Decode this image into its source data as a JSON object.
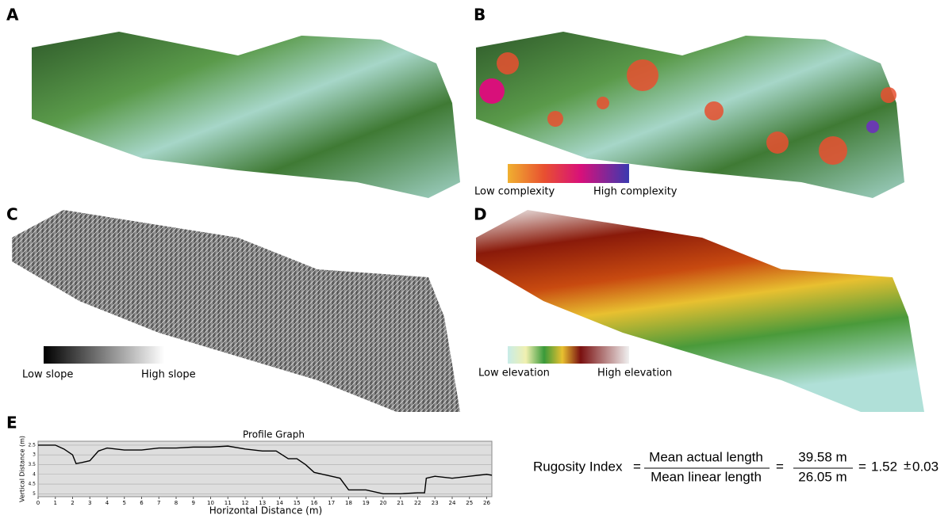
{
  "panels": {
    "a": {
      "letter": "A"
    },
    "b": {
      "letter": "B",
      "legend_low": "Low complexity",
      "legend_high": "High complexity"
    },
    "c": {
      "letter": "C",
      "legend_low": "Low slope",
      "legend_high": "High slope"
    },
    "d": {
      "letter": "D",
      "legend_low": "Low elevation",
      "legend_high": "High elevation"
    },
    "e": {
      "letter": "E"
    }
  },
  "chart_data": {
    "type": "line",
    "title": "Profile Graph",
    "x_label": "Horizontal Distance (m)",
    "y_label": "Vertical Distance (m)",
    "x": [
      0,
      1,
      1.5,
      2,
      2.2,
      2.5,
      3,
      3.5,
      4,
      5,
      6,
      7,
      8,
      9,
      10,
      11,
      12,
      13,
      13.8,
      14.5,
      15,
      15.5,
      16,
      17,
      17.5,
      18,
      19,
      20,
      21,
      22,
      22.4,
      22.5,
      23,
      24,
      25,
      26,
      26.3
    ],
    "series": [
      {
        "name": "Profile",
        "color": "#000000",
        "values": [
          2.5,
          2.5,
          2.7,
          3.0,
          3.45,
          3.4,
          3.3,
          2.8,
          2.65,
          2.75,
          2.75,
          2.65,
          2.65,
          2.6,
          2.6,
          2.55,
          2.7,
          2.8,
          2.8,
          3.2,
          3.2,
          3.5,
          3.9,
          4.1,
          4.2,
          4.8,
          4.8,
          5.0,
          5.0,
          4.95,
          4.95,
          4.2,
          4.1,
          4.2,
          4.1,
          4.0,
          4.05
        ]
      }
    ],
    "xlim": [
      0,
      26.3
    ],
    "xticks": [
      0,
      1,
      2,
      3,
      4,
      5,
      6,
      7,
      8,
      9,
      10,
      11,
      12,
      13,
      14,
      15,
      16,
      17,
      18,
      19,
      20,
      21,
      22,
      23,
      24,
      25,
      26
    ],
    "ylim": [
      2.3,
      5.15
    ],
    "yticks": [
      2.5,
      3,
      3.5,
      4,
      4.5,
      5
    ],
    "y_inverted": true,
    "grid": true
  },
  "formula": {
    "label": "Rugosity Index",
    "equals": "=",
    "numerator": "Mean actual length",
    "denominator": "Mean linear length",
    "num_value": "39.58 m",
    "den_value": "26.05 m",
    "result": "1.52",
    "plusminus": "±",
    "error": "0.03"
  }
}
